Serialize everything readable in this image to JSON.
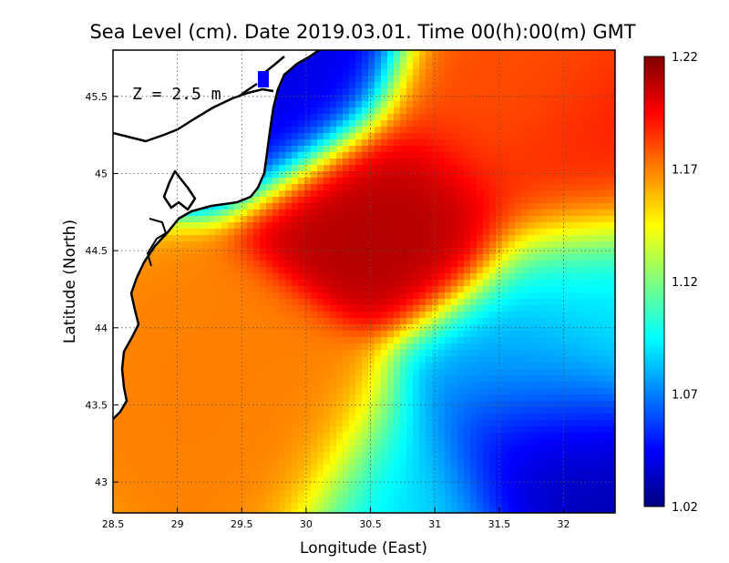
{
  "title": "Sea Level (cm). Date 2019.03.01. Time 00(h):00(m) GMT",
  "depth_label": "Z = 2.5 m",
  "xaxis": {
    "label": "Longitude (East)",
    "range": [
      28.5,
      32.4
    ],
    "ticks": [
      "28.5",
      "29",
      "29.5",
      "30",
      "30.5",
      "31",
      "31.5",
      "32"
    ]
  },
  "yaxis": {
    "label": "Latitude (North)",
    "range": [
      42.8,
      45.8
    ],
    "ticks": [
      "43",
      "43.5",
      "44",
      "44.5",
      "45",
      "45.5"
    ]
  },
  "colorbar": {
    "min": 1.02,
    "max": 1.22,
    "ticks": [
      "1.22",
      "1.17",
      "1.12",
      "1.07",
      "1.02"
    ],
    "palette": [
      "#00007f",
      "#0000ff",
      "#0080ff",
      "#00ffff",
      "#7fff7f",
      "#ffff00",
      "#ff8000",
      "#ff0000",
      "#7f0000"
    ]
  },
  "chart_data": {
    "type": "heatmap",
    "title": "Sea Level (cm). Date 2019.03.01. Time 00(h):00(m) GMT",
    "xlabel": "Longitude (East)",
    "ylabel": "Latitude (North)",
    "xlim": [
      28.5,
      32.4
    ],
    "ylim": [
      42.8,
      45.8
    ],
    "zlim": [
      1.02,
      1.22
    ],
    "field_features": [
      {
        "name": "central high",
        "lon": 30.75,
        "lat": 44.7,
        "value": 1.21
      },
      {
        "name": "north-east high",
        "lon": 32.2,
        "lat": 45.0,
        "value": 1.19
      },
      {
        "name": "north high",
        "lon": 31.5,
        "lat": 45.4,
        "value": 1.18
      },
      {
        "name": "south-west high",
        "lon": 29.4,
        "lat": 43.6,
        "value": 1.17
      },
      {
        "name": "south-west high 2",
        "lon": 29.8,
        "lat": 43.3,
        "value": 1.17
      },
      {
        "name": "south-east low",
        "lon": 31.8,
        "lat": 43.15,
        "value": 1.03
      },
      {
        "name": "east low",
        "lon": 32.3,
        "lat": 44.25,
        "value": 1.09
      },
      {
        "name": "east low 2",
        "lon": 31.7,
        "lat": 43.7,
        "value": 1.08
      },
      {
        "name": "south low",
        "lon": 30.8,
        "lat": 42.9,
        "value": 1.09
      },
      {
        "name": "north-west coastal low",
        "lon": 29.8,
        "lat": 45.7,
        "value": 1.04
      }
    ]
  }
}
